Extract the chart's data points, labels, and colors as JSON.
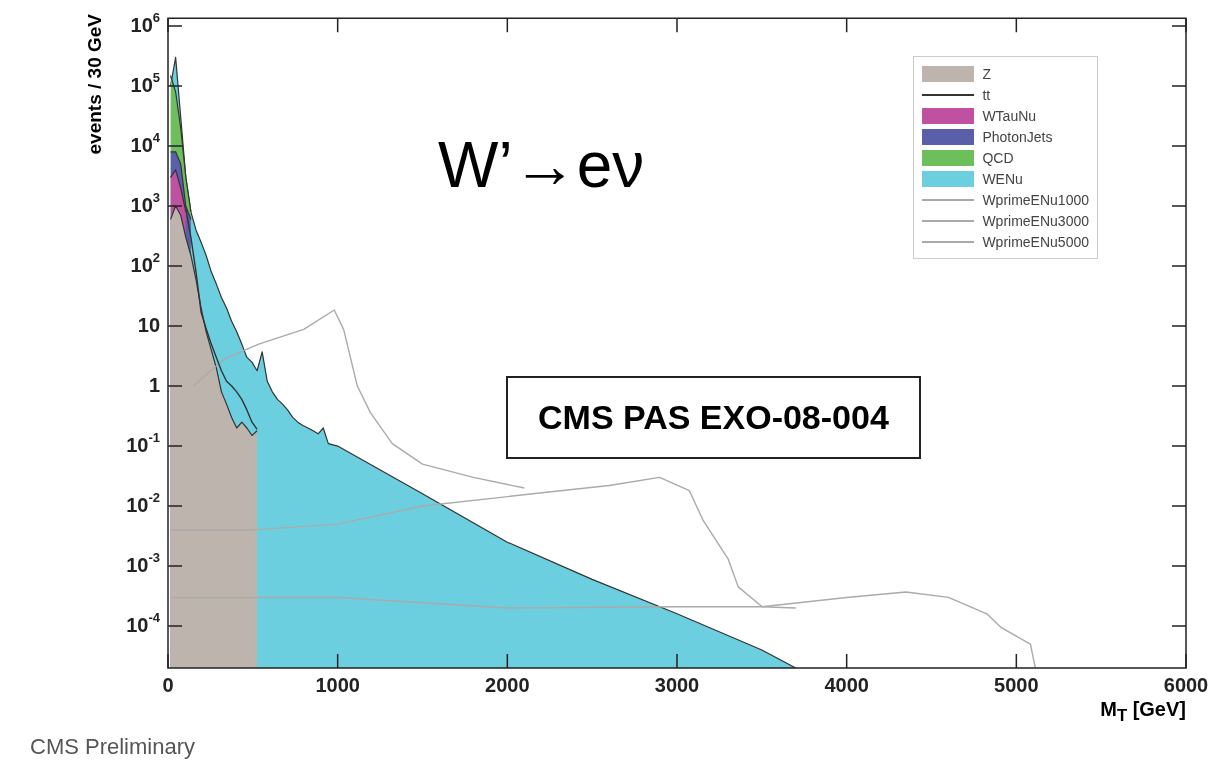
{
  "chart_data": {
    "type": "line",
    "xlabel": "M$_{T}$ [GeV]",
    "ylabel": "events / 30 GeV",
    "annotations": [
      "W’→eν",
      "CMS PAS EXO-08-004",
      "CMS Preliminary"
    ],
    "log": "y",
    "legend": "top right",
    "xlim": [
      0,
      6000
    ],
    "xticks": [
      0,
      1000,
      2000,
      3000,
      4000,
      5000,
      6000
    ],
    "ylim": [
      2e-05,
      1350000
    ],
    "yticks": [
      {
        "value": 0.0001,
        "label": "10$^{-4}$"
      },
      {
        "value": 0.001,
        "label": "10$^{-3}$"
      },
      {
        "value": 0.01,
        "label": "10$^{-2}$"
      },
      {
        "value": 0.1,
        "label": "10$^{-1}$"
      },
      1,
      10,
      {
        "value": 100,
        "label": "10$^{2}$"
      },
      {
        "value": 1000,
        "label": "10$^{3}$"
      },
      {
        "value": 10000,
        "label": "10$^{4}$"
      },
      {
        "value": 100000,
        "label": "10$^{5}$"
      },
      {
        "value": 1000000,
        "label": "10$^{6}$"
      }
    ],
    "series": [
      {
        "name": "Z",
        "type": "area",
        "color": "#bdb4ad",
        "x": [
          15,
          45,
          75,
          105,
          135,
          165,
          195,
          225,
          255,
          285,
          315,
          345,
          375,
          405,
          435,
          465,
          495,
          525
        ],
        "values": [
          600,
          1000,
          700,
          300,
          150,
          60,
          20,
          8,
          4,
          2,
          0.8,
          0.5,
          0.3,
          0.2,
          0.25,
          0.2,
          0.15,
          0.18
        ]
      },
      {
        "name": "tt",
        "type": "line",
        "color": "#333333",
        "x": [
          105,
          135,
          165,
          195,
          225,
          255,
          285,
          315,
          345,
          375,
          405,
          435,
          465,
          495,
          525
        ],
        "values": [
          900,
          300,
          80,
          17,
          9,
          5,
          3,
          1.8,
          1.2,
          1,
          0.8,
          0.6,
          0.4,
          0.25,
          0.19
        ]
      },
      {
        "name": "WTauNu",
        "type": "area",
        "color": "#c050a0",
        "x": [
          15,
          45,
          75,
          105
        ],
        "values": [
          3000,
          4000,
          2000,
          800
        ]
      },
      {
        "name": "PhotonJets",
        "type": "area",
        "color": "#5a5faa",
        "x": [
          15,
          45,
          75,
          105,
          135
        ],
        "values": [
          8000,
          8000,
          5000,
          1000,
          600
        ]
      },
      {
        "name": "QCD",
        "type": "area",
        "color": "#6cbf5a",
        "x": [
          15,
          45,
          75,
          105,
          135
        ],
        "values": [
          150000,
          80000,
          20000,
          3000,
          800
        ]
      },
      {
        "name": "WENu",
        "type": "area",
        "color": "#6ccfdf",
        "x": [
          15,
          45,
          75,
          105,
          135,
          165,
          195,
          225,
          255,
          285,
          315,
          345,
          375,
          405,
          435,
          465,
          495,
          525,
          555,
          585,
          615,
          645,
          675,
          705,
          735,
          765,
          795,
          825,
          855,
          885,
          915,
          945,
          1000,
          1500,
          2000,
          2500,
          3000,
          3500,
          3700
        ],
        "values": [
          100000,
          300000,
          30000,
          3000,
          800,
          400,
          250,
          150,
          80,
          50,
          30,
          20,
          12,
          8,
          5,
          3,
          2.5,
          1.8,
          3.7,
          1.2,
          0.8,
          0.6,
          0.5,
          0.4,
          0.3,
          0.25,
          0.22,
          0.2,
          0.18,
          0.16,
          0.2,
          0.11,
          0.1,
          0.016,
          0.0025,
          0.0006,
          0.00016,
          4e-05,
          2e-05
        ]
      },
      {
        "name": "WprimeENu1000",
        "type": "line",
        "color": "#aaaaaa",
        "x": [
          150,
          330,
          535,
          800,
          980,
          1035,
          1116,
          1193,
          1322,
          1500,
          1800,
          2100
        ],
        "values": [
          1,
          2.8,
          5,
          8.8,
          18.5,
          8.8,
          1,
          0.36,
          0.11,
          0.05,
          0.03,
          0.02
        ]
      },
      {
        "name": "WprimeENu3000",
        "type": "line",
        "color": "#aaaaaa",
        "x": [
          15,
          500,
          1000,
          1500,
          2150,
          2600,
          2897,
          3073,
          3155,
          3302,
          3361,
          3502,
          3700
        ],
        "values": [
          0.004,
          0.004,
          0.005,
          0.01,
          0.016,
          0.022,
          0.03,
          0.018,
          0.0057,
          0.0013,
          0.00045,
          0.00021,
          0.0002
        ]
      },
      {
        "name": "WprimeENu5000",
        "type": "line",
        "color": "#aaaaaa",
        "x": [
          15,
          1000,
          2000,
          3000,
          3500,
          4000,
          4350,
          4600,
          4826,
          4912,
          5083,
          5112
        ],
        "values": [
          0.0003,
          0.0003,
          0.0002,
          0.00021,
          0.00021,
          0.0003,
          0.00037,
          0.0003,
          0.00016,
          9.4e-05,
          5e-05,
          2e-05
        ]
      }
    ]
  }
}
